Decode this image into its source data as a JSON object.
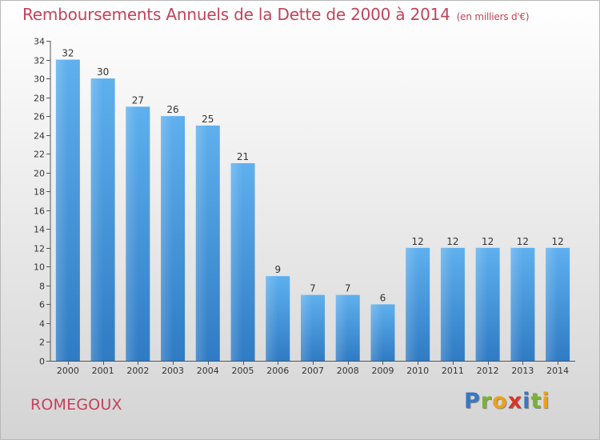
{
  "chart_data": {
    "type": "bar",
    "title": "Remboursements Annuels de la Dette de 2000 à 2014",
    "subtitle": "(en milliers d'€)",
    "categories": [
      "2000",
      "2001",
      "2002",
      "2003",
      "2004",
      "2005",
      "2006",
      "2007",
      "2008",
      "2009",
      "2010",
      "2011",
      "2012",
      "2013",
      "2014"
    ],
    "values": [
      32,
      30,
      27,
      26,
      25,
      21,
      9,
      7,
      7,
      6,
      12,
      12,
      12,
      12,
      12
    ],
    "ylim": [
      0,
      34
    ],
    "yticks": [
      0,
      2,
      4,
      6,
      8,
      10,
      12,
      14,
      16,
      18,
      20,
      22,
      24,
      26,
      28,
      30,
      32,
      34
    ],
    "grid": false,
    "bar_color": "#4f9fdf"
  },
  "footer": {
    "commune": "ROMEGOUX",
    "brand_letters": [
      {
        "char": "P",
        "color": "#3a76c4"
      },
      {
        "char": "r",
        "color": "#7bb234"
      },
      {
        "char": "o",
        "color": "#e8a21c"
      },
      {
        "char": "x",
        "color": "#d8352a"
      },
      {
        "char": "i",
        "color": "#3a76c4"
      },
      {
        "char": "t",
        "color": "#7bb234"
      },
      {
        "char": "i",
        "color": "#e8a21c"
      }
    ]
  }
}
